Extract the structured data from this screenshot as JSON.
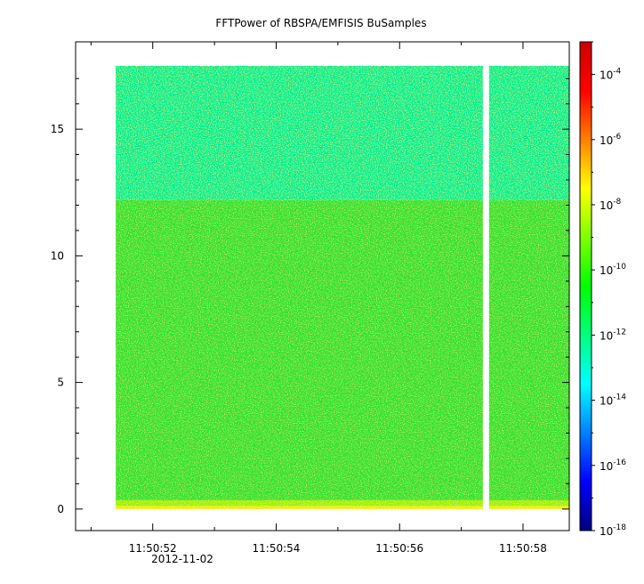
{
  "chart_data": {
    "type": "heatmap",
    "title": "FFTPower of RBSPA/EMFISIS  BuSamples",
    "xlabel": "",
    "ylabel": "",
    "x_axis": {
      "type": "time",
      "range": [
        "2012-11-02T11:50:50.75",
        "2012-11-02T11:50:58.75"
      ],
      "tick_labels": [
        "11:50:52",
        "11:50:54",
        "11:50:56",
        "11:50:58"
      ],
      "tick_values": [
        "2012-11-02T11:50:52",
        "2012-11-02T11:50:54",
        "2012-11-02T11:50:56",
        "2012-11-02T11:50:58"
      ],
      "date_label": "2012-11-02"
    },
    "y_axis": {
      "range": [
        -0.85,
        18.45
      ],
      "tick_values": [
        0,
        5,
        10,
        15
      ],
      "tick_labels": [
        "0",
        "5",
        "10",
        "15"
      ]
    },
    "colorbar": {
      "scale": "log",
      "range": [
        1e-18,
        0.001
      ],
      "tick_values": [
        1e-18,
        1e-16,
        1e-14,
        1e-12,
        1e-10,
        1e-08,
        1e-06,
        0.0001
      ],
      "tick_base": "10",
      "tick_exponents": [
        "-18",
        "-16",
        "-14",
        "-12",
        "-10",
        "-8",
        "-6",
        "-4"
      ],
      "colors": [
        "#000080",
        "#0000ff",
        "#0080ff",
        "#00ffff",
        "#00ff80",
        "#00ff00",
        "#80ff00",
        "#ffff00",
        "#ff8000",
        "#ff0000",
        "#cc0000"
      ]
    },
    "heatmap": {
      "time_start": "2012-11-02T11:50:51.4",
      "time_end": "2012-11-02T11:50:58.75",
      "freq_range": [
        0,
        17.5
      ],
      "gap": {
        "start": "2012-11-02T11:50:57.35",
        "end": "2012-11-02T11:50:57.45"
      },
      "bands": [
        {
          "freq_range": [
            0,
            0.12
          ],
          "power": 1e-08,
          "color": "#f0f000"
        },
        {
          "freq_range": [
            0.12,
            0.35
          ],
          "power": 3e-09,
          "color": "#a0f000"
        },
        {
          "freq_range": [
            0.35,
            12.2
          ],
          "power": 1e-10,
          "color": "#30e030"
        },
        {
          "freq_range": [
            12.2,
            17.5
          ],
          "power": 3e-12,
          "color": "#00ee90"
        }
      ]
    }
  }
}
